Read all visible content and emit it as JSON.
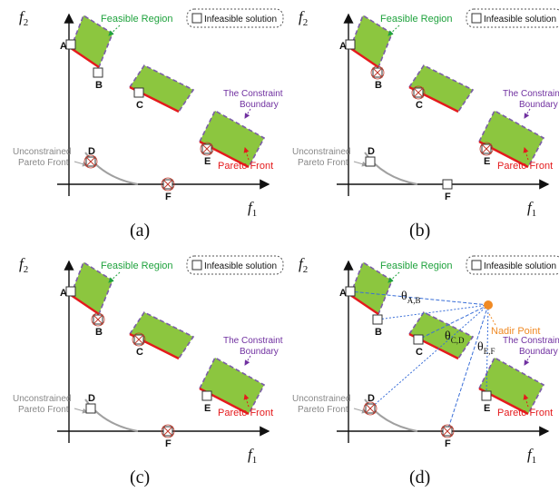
{
  "colors": {
    "region_fill": "#8cc63f",
    "region_outline": "#7b5ea7",
    "pareto_front": "#e41a1c",
    "feasible_label": "#1fa23d",
    "pareto_label": "#e41a1c",
    "boundary_label": "#7030a0",
    "unconstrained_curve": "#a0a0a0",
    "nadir_point": "#f08a24",
    "nadir_label": "#f08a24",
    "projection_lines": "#3a6fd8",
    "axis": "#111111",
    "infeasible_cross": "#c0392b"
  },
  "axis_labels": {
    "f1_base": "f",
    "f1_sub": "1",
    "f2_base": "f",
    "f2_sub": "2"
  },
  "legend": {
    "label": "Infeasible solution"
  },
  "region_labels": {
    "feasible": "Feasible Region",
    "pareto": "Pareto Front",
    "boundary_line1": "The Constraint",
    "boundary_line2": "Boundary",
    "unconstrained_line1": "Unconstrained",
    "unconstrained_line2": "Pareto Front"
  },
  "points": {
    "A": "A",
    "B": "B",
    "C": "C",
    "D": "D",
    "E": "E",
    "F": "F"
  },
  "nadir": {
    "label": "Nadir Point"
  },
  "angles": {
    "ab_base": "θ",
    "ab_sub": "A,B",
    "cd_base": "θ",
    "cd_sub": "C,D",
    "ef_base": "θ",
    "ef_sub": "E,F"
  },
  "panels": [
    {
      "caption": "(a)",
      "infeasible": [
        "D",
        "E",
        "F"
      ],
      "unconstrained_label": true,
      "boundary_label": true,
      "nadir": false
    },
    {
      "caption": "(b)",
      "infeasible": [
        "B",
        "C",
        "E"
      ],
      "unconstrained_label": true,
      "boundary_label": true,
      "nadir": false
    },
    {
      "caption": "(c)",
      "infeasible": [
        "B",
        "C",
        "F"
      ],
      "unconstrained_label": true,
      "boundary_label": true,
      "nadir": false
    },
    {
      "caption": "(d)",
      "infeasible": [
        "D",
        "F"
      ],
      "unconstrained_label": true,
      "boundary_label": true,
      "nadir": true
    }
  ]
}
